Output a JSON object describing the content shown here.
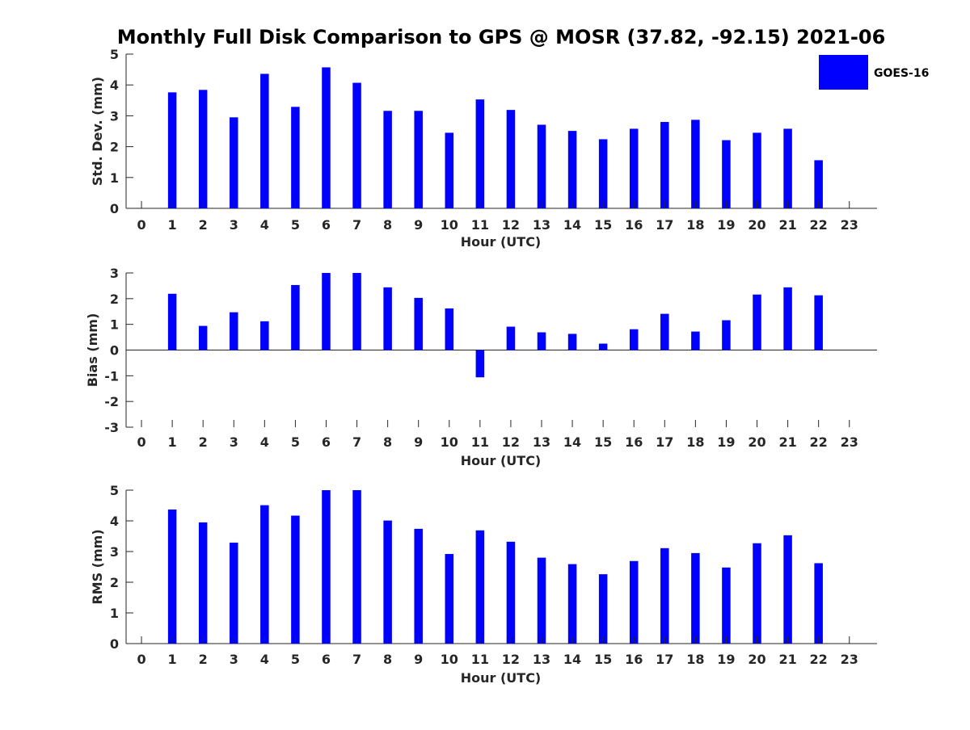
{
  "title": "Monthly Full Disk Comparison to GPS @ MOSR (37.82, -92.15) 2021-06",
  "legend": {
    "label": "GOES-16",
    "color": "#0000ff"
  },
  "chart_data": [
    {
      "type": "bar",
      "ylabel": "Std. Dev. (mm)",
      "xlabel": "Hour (UTC)",
      "ylim": [
        0,
        5
      ],
      "yticks": [
        0,
        1,
        2,
        3,
        4,
        5
      ],
      "xlim": [
        -0.5,
        23.9
      ],
      "x": [
        0,
        1,
        2,
        3,
        4,
        5,
        6,
        7,
        8,
        9,
        10,
        11,
        12,
        13,
        14,
        15,
        16,
        17,
        18,
        19,
        20,
        21,
        22,
        23
      ],
      "values": [
        null,
        3.76,
        3.84,
        2.95,
        4.36,
        3.29,
        4.57,
        4.07,
        3.16,
        3.16,
        2.45,
        3.53,
        3.19,
        2.71,
        2.51,
        2.24,
        2.58,
        2.8,
        2.87,
        2.21,
        2.45,
        2.58,
        1.56,
        null
      ],
      "color": "#0000ff"
    },
    {
      "type": "bar",
      "ylabel": "Bias (mm)",
      "xlabel": "Hour (UTC)",
      "ylim": [
        -3,
        3
      ],
      "yticks": [
        -3,
        -2,
        -1,
        0,
        1,
        2,
        3
      ],
      "xlim": [
        -0.5,
        23.9
      ],
      "x": [
        0,
        1,
        2,
        3,
        4,
        5,
        6,
        7,
        8,
        9,
        10,
        11,
        12,
        13,
        14,
        15,
        16,
        17,
        18,
        19,
        20,
        21,
        22,
        23
      ],
      "values": [
        null,
        2.19,
        0.94,
        1.47,
        1.12,
        2.53,
        3.0,
        3.0,
        2.44,
        2.03,
        1.62,
        -1.06,
        0.91,
        0.69,
        0.63,
        0.25,
        0.81,
        1.41,
        0.72,
        1.16,
        2.16,
        2.44,
        2.13,
        null
      ],
      "color": "#0000ff"
    },
    {
      "type": "bar",
      "ylabel": "RMS (mm)",
      "xlabel": "Hour (UTC)",
      "ylim": [
        0,
        5
      ],
      "yticks": [
        0,
        1,
        2,
        3,
        4,
        5
      ],
      "xlim": [
        -0.5,
        23.9
      ],
      "x": [
        0,
        1,
        2,
        3,
        4,
        5,
        6,
        7,
        8,
        9,
        10,
        11,
        12,
        13,
        14,
        15,
        16,
        17,
        18,
        19,
        20,
        21,
        22,
        23
      ],
      "values": [
        null,
        4.37,
        3.95,
        3.29,
        4.51,
        4.17,
        5.0,
        5.0,
        4.01,
        3.74,
        2.92,
        3.69,
        3.32,
        2.8,
        2.59,
        2.26,
        2.69,
        3.11,
        2.95,
        2.48,
        3.27,
        3.53,
        2.62,
        null
      ],
      "color": "#0000ff"
    }
  ]
}
